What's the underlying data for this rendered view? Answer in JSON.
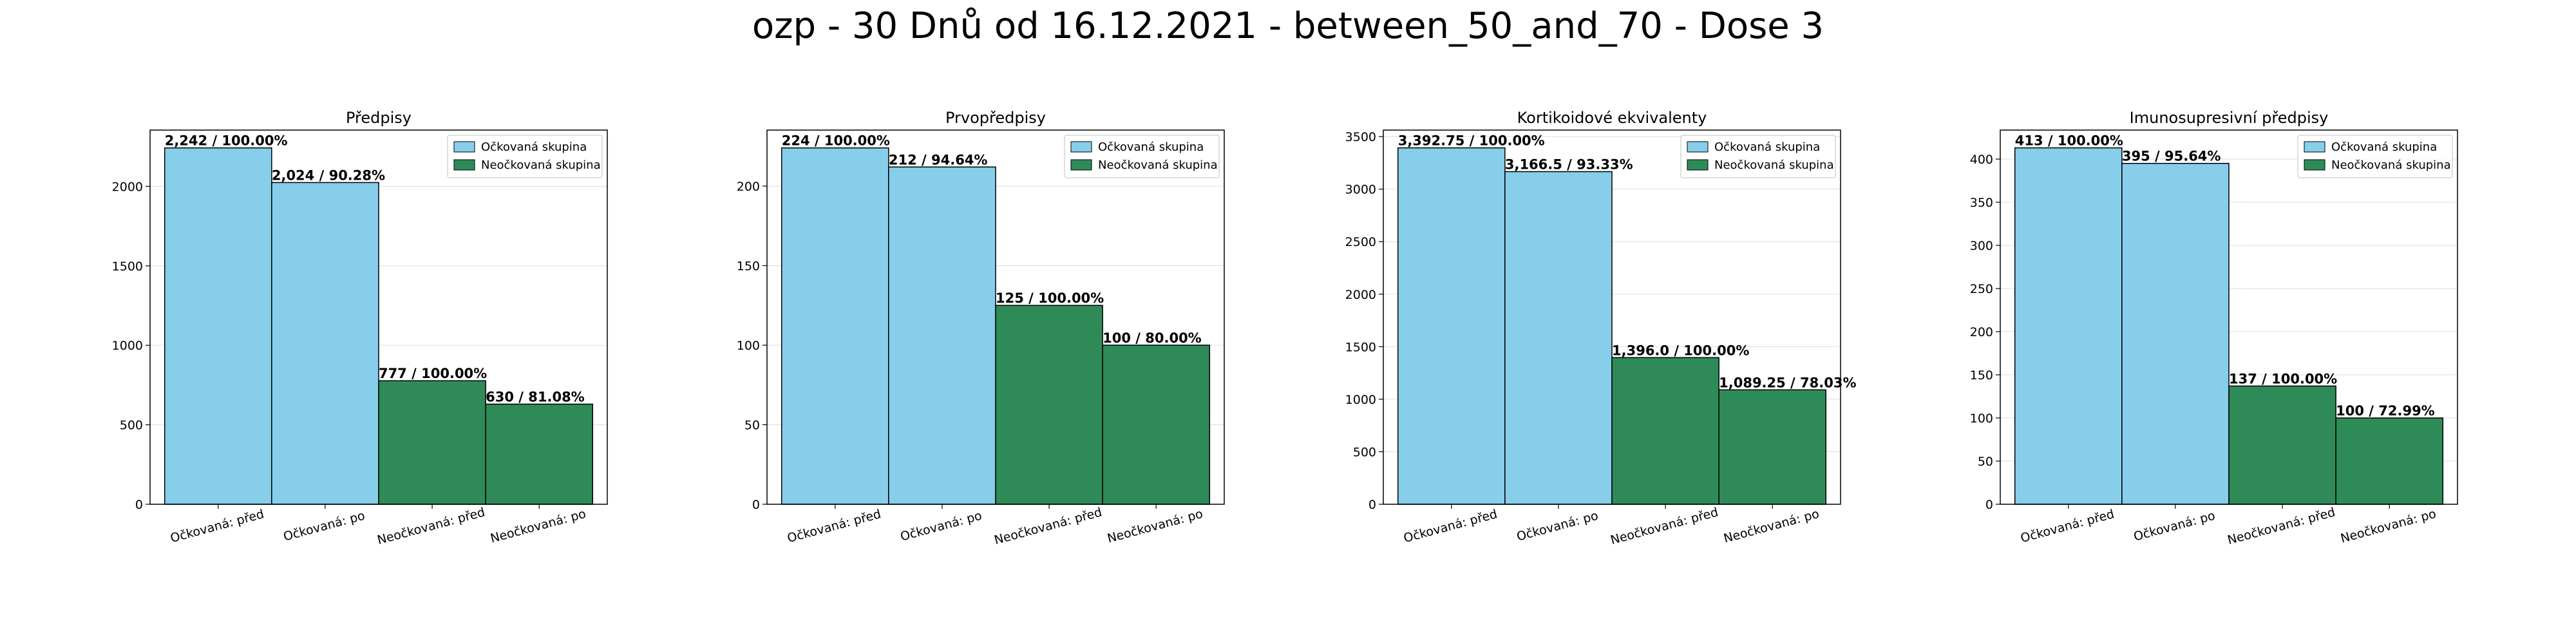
{
  "figure": {
    "title": "ozp - 30 Dnů od 16.12.2021 - between_50_and_70 - Dose 3"
  },
  "chart_data": [
    {
      "type": "bar",
      "title": "Předpisy",
      "categories": [
        "Očkovaná: před",
        "Očkovaná: po",
        "Neočkovaná: před",
        "Neočkovaná: po"
      ],
      "values": [
        2242,
        2024,
        777,
        630
      ],
      "labels": [
        "2,242 / 100.00%",
        "2,024 / 90.28%",
        "777 / 100.00%",
        "630 / 81.08%"
      ],
      "groups": [
        0,
        0,
        1,
        1
      ],
      "ylim": [
        0,
        2354
      ],
      "yticks": [
        0,
        500,
        1000,
        1500,
        2000
      ],
      "grid": true,
      "legend": {
        "placement": "top-right",
        "entries": [
          "Očkovaná skupina",
          "Neočkovaná skupina"
        ]
      }
    },
    {
      "type": "bar",
      "title": "Prvopředpisy",
      "categories": [
        "Očkovaná: před",
        "Očkovaná: po",
        "Neočkovaná: před",
        "Neočkovaná: po"
      ],
      "values": [
        224,
        212,
        125,
        100
      ],
      "labels": [
        "224 / 100.00%",
        "212 / 94.64%",
        "125 / 100.00%",
        "100 / 80.00%"
      ],
      "groups": [
        0,
        0,
        1,
        1
      ],
      "ylim": [
        0,
        235.2
      ],
      "yticks": [
        0,
        50,
        100,
        150,
        200
      ],
      "grid": true,
      "legend": {
        "placement": "top-right",
        "entries": [
          "Očkovaná skupina",
          "Neočkovaná skupina"
        ]
      }
    },
    {
      "type": "bar",
      "title": "Kortikoidové ekvivalenty",
      "categories": [
        "Očkovaná: před",
        "Očkovaná: po",
        "Neočkovaná: před",
        "Neočkovaná: po"
      ],
      "values": [
        3392.75,
        3166.5,
        1396.0,
        1089.25
      ],
      "labels": [
        "3,392.75 / 100.00%",
        "3,166.5 / 93.33%",
        "1,396.0 / 100.00%",
        "1,089.25 / 78.03%"
      ],
      "groups": [
        0,
        0,
        1,
        1
      ],
      "ylim": [
        0,
        3562
      ],
      "yticks": [
        0,
        500,
        1000,
        1500,
        2000,
        2500,
        3000,
        3500
      ],
      "grid": true,
      "legend": {
        "placement": "top-right",
        "entries": [
          "Očkovaná skupina",
          "Neočkovaná skupina"
        ]
      }
    },
    {
      "type": "bar",
      "title": "Imunosupresivní předpisy",
      "categories": [
        "Očkovaná: před",
        "Očkovaná: po",
        "Neočkovaná: před",
        "Neočkovaná: po"
      ],
      "values": [
        413,
        395,
        137,
        100
      ],
      "labels": [
        "413 / 100.00%",
        "395 / 95.64%",
        "137 / 100.00%",
        "100 / 72.99%"
      ],
      "groups": [
        0,
        0,
        1,
        1
      ],
      "ylim": [
        0,
        433.6
      ],
      "yticks": [
        0,
        50,
        100,
        150,
        200,
        250,
        300,
        350,
        400
      ],
      "grid": true,
      "legend": {
        "placement": "top-right",
        "entries": [
          "Očkovaná skupina",
          "Neočkovaná skupina"
        ]
      }
    }
  ],
  "colors": {
    "vaccinated": "#87CEEB",
    "unvaccinated": "#2E8B57",
    "edge": "#000000",
    "grid": "#dddddd"
  }
}
